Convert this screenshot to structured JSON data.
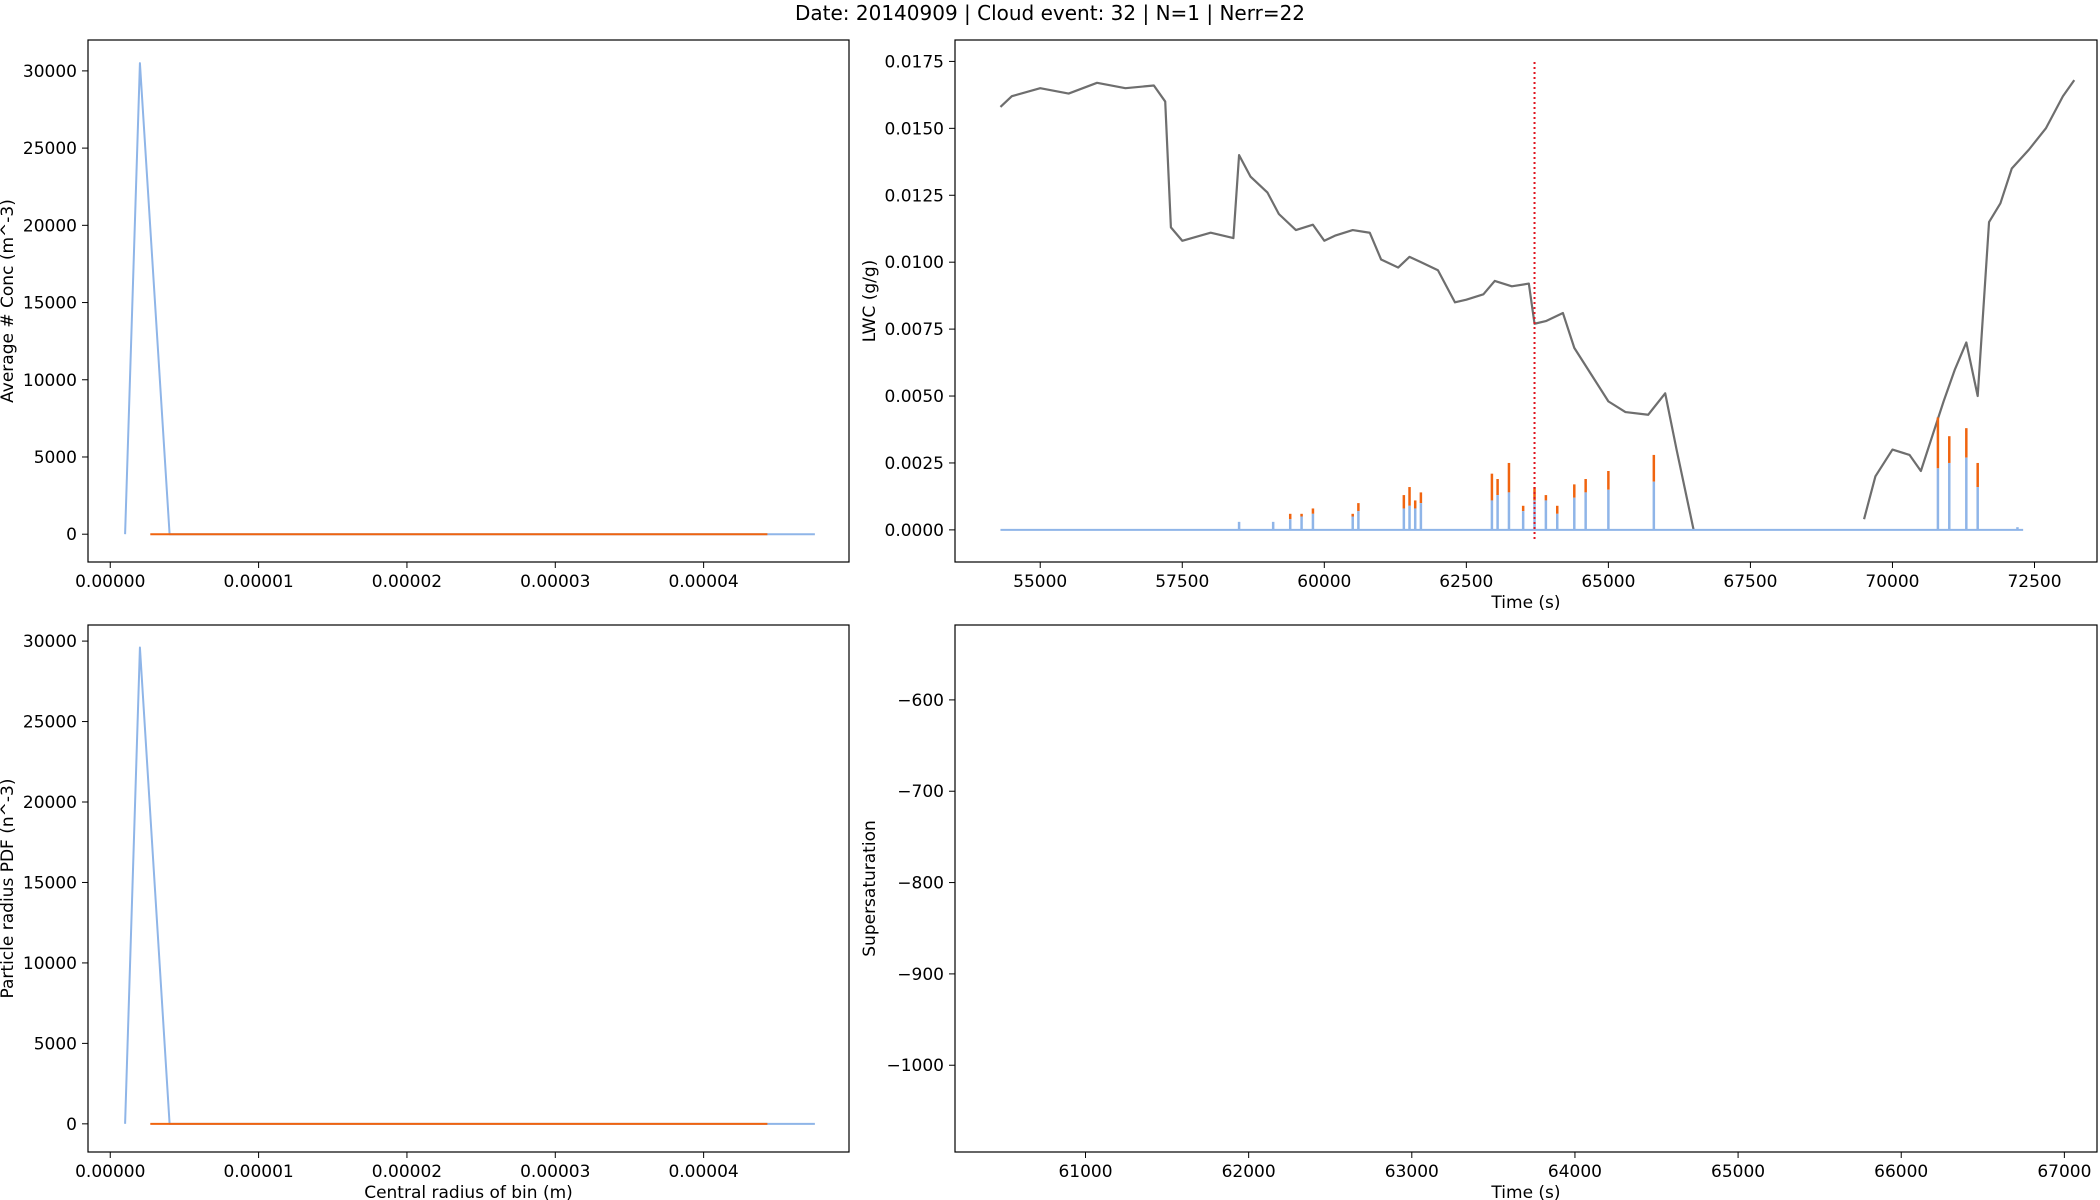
{
  "figure": {
    "suptitle": "Date: 20140909 | Cloud event: 32 | N=1 | Nerr=22"
  },
  "colors": {
    "blue": "#8fb5e8",
    "orange": "#f0640f",
    "gray": "#6e6e6e",
    "red": "#e0141e"
  },
  "chart_data": [
    {
      "id": "conc",
      "type": "line",
      "ylabel": "Average # Conc (m^-3)",
      "xlabel": "",
      "xlim": [
        -1.5e-06,
        4.98e-05
      ],
      "ylim": [
        -1800,
        32000
      ],
      "xticks": [
        0,
        1e-05,
        2e-05,
        3e-05,
        4e-05
      ],
      "xtick_labels": [
        "0.00000",
        "0.00001",
        "0.00002",
        "0.00003",
        "0.00004"
      ],
      "yticks": [
        0,
        5000,
        10000,
        15000,
        20000,
        25000,
        30000
      ],
      "ytick_labels": [
        "0",
        "5000",
        "10000",
        "15000",
        "20000",
        "25000",
        "30000"
      ],
      "series": [
        {
          "color": "blue",
          "x": [
            1e-06,
            2e-06,
            4e-06,
            4.75e-05
          ],
          "y": [
            0,
            30500,
            0,
            0
          ]
        },
        {
          "color": "orange",
          "x": [
            2.7e-06,
            4.43e-05
          ],
          "y": [
            0,
            0
          ]
        }
      ]
    },
    {
      "id": "lwc",
      "type": "line",
      "ylabel": "LWC (g/g)",
      "xlabel": "Time (s)",
      "xlim": [
        53500,
        73600
      ],
      "ylim": [
        -0.0012,
        0.0183
      ],
      "xticks": [
        55000,
        57500,
        60000,
        62500,
        65000,
        67500,
        70000,
        72500
      ],
      "xtick_labels": [
        "55000",
        "57500",
        "60000",
        "62500",
        "65000",
        "67500",
        "70000",
        "72500"
      ],
      "yticks": [
        0,
        0.0025,
        0.005,
        0.0075,
        0.01,
        0.0125,
        0.015,
        0.0175
      ],
      "ytick_labels": [
        "0.0000",
        "0.0025",
        "0.0050",
        "0.0075",
        "0.0100",
        "0.0125",
        "0.0150",
        "0.0175"
      ],
      "vline": {
        "x": 63700,
        "color": "red"
      },
      "lwc_trace": {
        "color": "gray",
        "segments": [
          {
            "x": [
              54300,
              54500,
              55000,
              55500,
              56000,
              56500,
              57000,
              57200,
              57300,
              57500,
              58000,
              58400,
              58500,
              58700,
              59000,
              59200,
              59500,
              59800,
              60000,
              60200,
              60500,
              60800,
              61000,
              61300,
              61500,
              61700,
              62000,
              62300,
              62500,
              62800,
              63000,
              63300,
              63600,
              63700,
              63900,
              64200,
              64400,
              64700,
              65000,
              65300,
              65700,
              66000,
              66200,
              66400,
              66500
            ],
            "y": [
              0.0158,
              0.0162,
              0.0165,
              0.0163,
              0.0167,
              0.0165,
              0.0166,
              0.016,
              0.0113,
              0.0108,
              0.0111,
              0.0109,
              0.014,
              0.0132,
              0.0126,
              0.0118,
              0.0112,
              0.0114,
              0.0108,
              0.011,
              0.0112,
              0.0111,
              0.0101,
              0.0098,
              0.0102,
              0.01,
              0.0097,
              0.0085,
              0.0086,
              0.0088,
              0.0093,
              0.0091,
              0.0092,
              0.0077,
              0.0078,
              0.0081,
              0.0068,
              0.0058,
              0.0048,
              0.0044,
              0.0043,
              0.0051,
              0.003,
              0.001,
              0.0
            ]
          },
          {
            "x": [
              69500,
              69700,
              70000,
              70300,
              70500,
              70700,
              70900,
              71100,
              71300,
              71500,
              71700,
              71900,
              72100,
              72400,
              72700,
              73000,
              73200
            ],
            "y": [
              0.0004,
              0.002,
              0.003,
              0.0028,
              0.0022,
              0.0035,
              0.0048,
              0.006,
              0.007,
              0.005,
              0.0115,
              0.0122,
              0.0135,
              0.0142,
              0.015,
              0.0162,
              0.0168
            ]
          }
        ]
      },
      "spikes": {
        "x": [
          58500,
          59100,
          59400,
          59600,
          59800,
          60500,
          60600,
          61400,
          61500,
          61600,
          61700,
          62950,
          63050,
          63250,
          63500,
          63700,
          63900,
          64100,
          64400,
          64600,
          65000,
          65800,
          70800,
          71000,
          71300,
          71500,
          72200
        ],
        "y_blue": [
          0.0003,
          0.0003,
          0.0004,
          0.0005,
          0.0006,
          0.0005,
          0.0007,
          0.0008,
          0.0009,
          0.0008,
          0.001,
          0.0011,
          0.0013,
          0.0014,
          0.0007,
          0.0011,
          0.0011,
          0.0006,
          0.0012,
          0.0014,
          0.0015,
          0.0018,
          0.0023,
          0.0025,
          0.0027,
          0.0016,
          0.0001
        ],
        "y_orange": [
          0.0003,
          0.0003,
          0.0006,
          0.0006,
          0.0008,
          0.0006,
          0.001,
          0.0013,
          0.0016,
          0.0011,
          0.0014,
          0.0021,
          0.0019,
          0.0025,
          0.0009,
          0.0016,
          0.0013,
          0.0009,
          0.0017,
          0.0019,
          0.0022,
          0.0028,
          0.0042,
          0.0035,
          0.0038,
          0.0025,
          0.0001
        ]
      },
      "baseline": {
        "color": "blue",
        "x": [
          54300,
          72300
        ],
        "y": [
          0,
          0
        ]
      }
    },
    {
      "id": "pdf",
      "type": "line",
      "ylabel": "Particle radius PDF (n^-3)",
      "xlabel": "Central radius of bin (m)",
      "xlim": [
        -1.5e-06,
        4.98e-05
      ],
      "ylim": [
        -1750,
        31000
      ],
      "xticks": [
        0,
        1e-05,
        2e-05,
        3e-05,
        4e-05
      ],
      "xtick_labels": [
        "0.00000",
        "0.00001",
        "0.00002",
        "0.00003",
        "0.00004"
      ],
      "yticks": [
        0,
        5000,
        10000,
        15000,
        20000,
        25000,
        30000
      ],
      "ytick_labels": [
        "0",
        "5000",
        "10000",
        "15000",
        "20000",
        "25000",
        "30000"
      ],
      "series": [
        {
          "color": "blue",
          "x": [
            1e-06,
            2e-06,
            4e-06,
            4.75e-05
          ],
          "y": [
            0,
            29600,
            0,
            0
          ]
        },
        {
          "color": "orange",
          "x": [
            2.7e-06,
            4.43e-05
          ],
          "y": [
            0,
            0
          ]
        }
      ]
    },
    {
      "id": "ss",
      "type": "line",
      "ylabel": "Supersaturation",
      "xlabel": "Time (s)",
      "xlim": [
        60200,
        67200
      ],
      "ylim": [
        -1095,
        -518
      ],
      "xticks": [
        61000,
        62000,
        63000,
        64000,
        65000,
        66000,
        67000
      ],
      "xtick_labels": [
        "61000",
        "62000",
        "63000",
        "64000",
        "65000",
        "66000",
        "67000"
      ],
      "yticks": [
        -600,
        -700,
        -800,
        -900,
        -1000
      ],
      "ytick_labels": [
        "−600",
        "−700",
        "−800",
        "−900",
        "−1000"
      ],
      "series": []
    }
  ]
}
